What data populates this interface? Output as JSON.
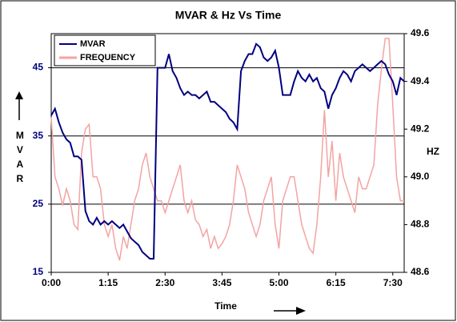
{
  "chart_data": {
    "type": "line",
    "title": "MVAR & Hz Vs Time",
    "x_label": "Time",
    "y_label": "MVAR",
    "y2_label": "HZ",
    "x": [
      0,
      5,
      10,
      15,
      20,
      25,
      30,
      35,
      40,
      45,
      50,
      55,
      60,
      65,
      70,
      75,
      80,
      85,
      90,
      95,
      100,
      105,
      110,
      115,
      120,
      125,
      130,
      135,
      140,
      145,
      150,
      155,
      160,
      165,
      170,
      175,
      180,
      185,
      190,
      195,
      200,
      205,
      210,
      215,
      220,
      225,
      230,
      235,
      240,
      245,
      250,
      255,
      260,
      265,
      270,
      275,
      280,
      285,
      290,
      295,
      300,
      305,
      310,
      315,
      320,
      325,
      330,
      335,
      340,
      345,
      350,
      355,
      360,
      365,
      370,
      375,
      380,
      385,
      390,
      395,
      400,
      405,
      410,
      415,
      420,
      425,
      430,
      435,
      440,
      445,
      450,
      455,
      460,
      465
    ],
    "xlim": [
      0,
      465
    ],
    "xticks": [
      {
        "value": 0,
        "label": "0:00"
      },
      {
        "value": 75,
        "label": "1:15"
      },
      {
        "value": 150,
        "label": "2:30"
      },
      {
        "value": 225,
        "label": "3:45"
      },
      {
        "value": 300,
        "label": "5:00"
      },
      {
        "value": 375,
        "label": "6:15"
      },
      {
        "value": 450,
        "label": "7:30"
      }
    ],
    "ylim": [
      15,
      50
    ],
    "yticks": [
      15,
      25,
      35,
      45
    ],
    "y2lim": [
      48.6,
      49.6
    ],
    "y2ticks": [
      48.6,
      48.8,
      {
        "value": 49,
        "label": "49.0"
      },
      49.2,
      49.4,
      49.6
    ],
    "grid": true,
    "legend": "upper left",
    "series": [
      {
        "name": "MVAR",
        "color": "#000080",
        "axis": "y",
        "values": [
          38,
          39,
          37,
          35.5,
          34.5,
          34,
          32,
          32,
          31.5,
          24,
          22.5,
          22,
          23,
          22,
          22.5,
          22,
          22.5,
          22,
          21.5,
          22,
          21,
          20,
          19.5,
          19,
          18,
          17.5,
          17,
          17,
          45,
          45,
          45,
          47,
          44.5,
          43.5,
          42,
          41,
          41.5,
          41,
          41,
          40.5,
          41,
          41.5,
          40,
          40,
          39.5,
          39,
          38.5,
          37.5,
          37,
          36,
          44.5,
          46,
          47,
          47,
          48.5,
          48,
          46.5,
          46,
          46.5,
          47.5,
          45,
          41,
          41,
          41,
          43,
          44.5,
          43.5,
          43,
          44,
          43,
          43.5,
          42,
          41.5,
          39,
          41,
          42,
          43.5,
          44.5,
          44,
          43,
          44.5,
          45,
          45.5,
          45,
          44.5,
          45,
          45.5,
          46,
          45.5,
          44,
          43,
          41,
          43.5,
          43
        ]
      },
      {
        "name": "FREQUENCY",
        "color": "#f4a3a3",
        "axis": "y2",
        "values": [
          49.25,
          49,
          48.95,
          48.88,
          48.95,
          48.9,
          48.8,
          48.78,
          49.1,
          49.2,
          49.22,
          49,
          49,
          48.95,
          48.8,
          48.75,
          48.8,
          48.7,
          48.65,
          48.75,
          48.7,
          48.8,
          48.9,
          48.95,
          49.05,
          49.1,
          49,
          48.95,
          48.9,
          48.9,
          48.85,
          48.9,
          48.95,
          49,
          49.05,
          48.9,
          48.85,
          48.9,
          48.82,
          48.8,
          48.75,
          48.78,
          48.7,
          48.75,
          48.7,
          48.72,
          48.75,
          48.8,
          48.9,
          49.05,
          49,
          48.95,
          48.85,
          48.8,
          48.75,
          48.8,
          48.9,
          48.95,
          49,
          48.8,
          48.7,
          48.9,
          48.95,
          49,
          49,
          48.9,
          48.8,
          48.75,
          48.7,
          48.68,
          48.8,
          49,
          49.28,
          49,
          49.15,
          48.9,
          49.1,
          49,
          48.95,
          48.9,
          48.85,
          49,
          48.95,
          48.95,
          49,
          49.05,
          49.3,
          49.45,
          49.58,
          49.58,
          49.3,
          49,
          48.9,
          48.9
        ]
      }
    ]
  }
}
